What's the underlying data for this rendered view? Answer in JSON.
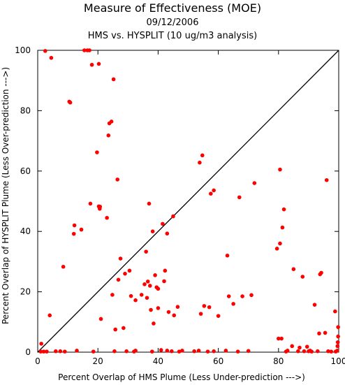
{
  "chart_data": {
    "type": "scatter",
    "title": "Measure of Effectiveness (MOE)",
    "subtitle": "09/12/2006",
    "subtitle2": "HMS vs. HYSPLIT  (10 ug/m3 analysis)",
    "xlabel": "Percent Overlap of HMS Plume (Less Under-prediction --->)",
    "ylabel": "Percent Overlap of HYSPLIT Plume (Less Over-prediction --->)",
    "xlim": [
      0,
      100
    ],
    "ylim": [
      0,
      100
    ],
    "xticks": [
      0,
      20,
      40,
      60,
      80,
      100
    ],
    "yticks": [
      0,
      20,
      40,
      60,
      80,
      100
    ],
    "grid": false,
    "reference_line": {
      "from": [
        0,
        0
      ],
      "to": [
        100,
        100
      ],
      "color": "#000000"
    },
    "point_color": "#ff0000",
    "points": [
      [
        1,
        0.2
      ],
      [
        1.2,
        2.8
      ],
      [
        2,
        0.2
      ],
      [
        2.5,
        99.8
      ],
      [
        3,
        0.2
      ],
      [
        4,
        12.2
      ],
      [
        4.5,
        97.5
      ],
      [
        6,
        0.3
      ],
      [
        7.5,
        0.3
      ],
      [
        8.5,
        28.3
      ],
      [
        9,
        0.2
      ],
      [
        10.5,
        83
      ],
      [
        10.8,
        82.7
      ],
      [
        12,
        39.2
      ],
      [
        12.2,
        42
      ],
      [
        13,
        0.5
      ],
      [
        14.5,
        40.6
      ],
      [
        15.5,
        100
      ],
      [
        16.5,
        100
      ],
      [
        17.2,
        100
      ],
      [
        17.5,
        49.2
      ],
      [
        18,
        95.2
      ],
      [
        18.5,
        0.2
      ],
      [
        19.7,
        66.2
      ],
      [
        20.3,
        95.5
      ],
      [
        20.3,
        48.3
      ],
      [
        20.6,
        47.5
      ],
      [
        20.7,
        48.2
      ],
      [
        21,
        11
      ],
      [
        23,
        44.5
      ],
      [
        23.5,
        71.8
      ],
      [
        23.8,
        75.8
      ],
      [
        24.5,
        76.4
      ],
      [
        24.8,
        19
      ],
      [
        25.2,
        90.4
      ],
      [
        25.5,
        0.3
      ],
      [
        25.8,
        7.5
      ],
      [
        26.5,
        57.2
      ],
      [
        26.8,
        24
      ],
      [
        27.5,
        31
      ],
      [
        28.5,
        8
      ],
      [
        29,
        26
      ],
      [
        29.5,
        0.3
      ],
      [
        30.5,
        27
      ],
      [
        31,
        18.6
      ],
      [
        32,
        0.2
      ],
      [
        32.5,
        0.5
      ],
      [
        32.5,
        17.2
      ],
      [
        34.5,
        19
      ],
      [
        35.5,
        22.5
      ],
      [
        36,
        33.3
      ],
      [
        36.3,
        18
      ],
      [
        36.6,
        23.4
      ],
      [
        37,
        49.2
      ],
      [
        37.3,
        22
      ],
      [
        37.6,
        14
      ],
      [
        38,
        0.2
      ],
      [
        38.2,
        40
      ],
      [
        38.5,
        9.5
      ],
      [
        39,
        25.5
      ],
      [
        39.5,
        21.5
      ],
      [
        40,
        14.6
      ],
      [
        40,
        21
      ],
      [
        41,
        0.7
      ],
      [
        41.5,
        42.5
      ],
      [
        42,
        23.5
      ],
      [
        42.3,
        27
      ],
      [
        43,
        39.3
      ],
      [
        43,
        0.5
      ],
      [
        43.5,
        13.3
      ],
      [
        44.5,
        0.3
      ],
      [
        45,
        45
      ],
      [
        45.3,
        12.2
      ],
      [
        46.5,
        15
      ],
      [
        47,
        0.2
      ],
      [
        48,
        0.5
      ],
      [
        52,
        0.3
      ],
      [
        53.5,
        0.5
      ],
      [
        53.8,
        62.8
      ],
      [
        54.2,
        12.7
      ],
      [
        54.7,
        65.2
      ],
      [
        55.3,
        15.3
      ],
      [
        56.5,
        0.2
      ],
      [
        57,
        14.9
      ],
      [
        57.5,
        52.5
      ],
      [
        58.5,
        53.6
      ],
      [
        58.5,
        0.3
      ],
      [
        60,
        12
      ],
      [
        62.5,
        0.5
      ],
      [
        63,
        32
      ],
      [
        63.5,
        18.5
      ],
      [
        65,
        16
      ],
      [
        66.5,
        0.2
      ],
      [
        67,
        51.3
      ],
      [
        68,
        18.5
      ],
      [
        70,
        0.4
      ],
      [
        71,
        18.9
      ],
      [
        72,
        56
      ],
      [
        79.5,
        34.3
      ],
      [
        80,
        4.5
      ],
      [
        80.5,
        60.5
      ],
      [
        80.5,
        36
      ],
      [
        81,
        4.5
      ],
      [
        81.3,
        41.3
      ],
      [
        81.8,
        47.3
      ],
      [
        82.5,
        0.2
      ],
      [
        83,
        0.5
      ],
      [
        84.5,
        2
      ],
      [
        85,
        27.5
      ],
      [
        86.5,
        0.3
      ],
      [
        87,
        1.5
      ],
      [
        88,
        25
      ],
      [
        88.5,
        0.3
      ],
      [
        89.5,
        1.8
      ],
      [
        90,
        0.3
      ],
      [
        90.5,
        0.5
      ],
      [
        91,
        0.2
      ],
      [
        92,
        15.7
      ],
      [
        93,
        0.3
      ],
      [
        93.5,
        6.2
      ],
      [
        93.8,
        25.8
      ],
      [
        94.2,
        26.3
      ],
      [
        95.5,
        6.4
      ],
      [
        96,
        57
      ],
      [
        96.5,
        0.3
      ],
      [
        97.5,
        0.2
      ],
      [
        98.8,
        13.5
      ],
      [
        99,
        0.2
      ],
      [
        99.5,
        0.5
      ],
      [
        99.6,
        2
      ],
      [
        99.7,
        3.3
      ],
      [
        99.8,
        5.2
      ],
      [
        99.8,
        8.3
      ]
    ]
  }
}
